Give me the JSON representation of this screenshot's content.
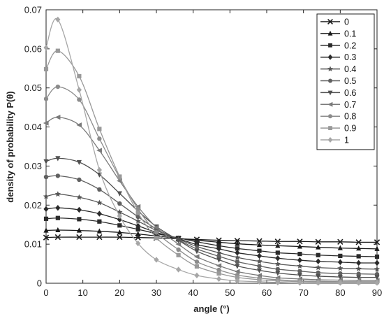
{
  "chart_data": {
    "type": "line",
    "xlabel": "angle (°)",
    "ylabel": "density of probability P(θ)",
    "xlim": [
      0,
      90
    ],
    "ylim": [
      0,
      0.07
    ],
    "xticks": [
      "0",
      "10",
      "20",
      "30",
      "40",
      "50",
      "60",
      "70",
      "80",
      "90"
    ],
    "yticks": [
      "0",
      "0.01",
      "0.02",
      "0.03",
      "0.04",
      "0.05",
      "0.06",
      "0.07"
    ],
    "grid": false,
    "legend_position": "top-right",
    "x": [
      0,
      3.2,
      9,
      14.5,
      20,
      25,
      30,
      36,
      41,
      47,
      52,
      58,
      63,
      69,
      74,
      80,
      85,
      90
    ],
    "series": [
      {
        "name": "0",
        "marker": "x",
        "color": "#1a1a1a",
        "values": [
          0.0117,
          0.0118,
          0.0118,
          0.0118,
          0.0118,
          0.0117,
          0.0116,
          0.0114,
          0.0112,
          0.011,
          0.0109,
          0.0108,
          0.0107,
          0.0107,
          0.0106,
          0.0106,
          0.0105,
          0.0105
        ]
      },
      {
        "name": "0.1",
        "marker": "triangle",
        "color": "#1a1a1a",
        "values": [
          0.0135,
          0.0136,
          0.0135,
          0.0133,
          0.013,
          0.0126,
          0.0121,
          0.0115,
          0.011,
          0.0105,
          0.0101,
          0.0098,
          0.0096,
          0.0094,
          0.0092,
          0.009,
          0.0089,
          0.0088
        ]
      },
      {
        "name": "0.2",
        "marker": "square",
        "color": "#2a2a2a",
        "values": [
          0.0165,
          0.0167,
          0.0164,
          0.0158,
          0.0148,
          0.0138,
          0.0127,
          0.0116,
          0.0106,
          0.0096,
          0.0089,
          0.0083,
          0.0078,
          0.0075,
          0.0072,
          0.007,
          0.0069,
          0.0068
        ]
      },
      {
        "name": "0.3",
        "marker": "diamond",
        "color": "#2a2a2a",
        "values": [
          0.019,
          0.0193,
          0.0188,
          0.0178,
          0.0163,
          0.0147,
          0.013,
          0.0114,
          0.0099,
          0.0088,
          0.0078,
          0.007,
          0.0064,
          0.0059,
          0.0056,
          0.0054,
          0.0052,
          0.0052
        ]
      },
      {
        "name": "0.4",
        "marker": "star",
        "color": "#555555",
        "values": [
          0.0222,
          0.0228,
          0.022,
          0.0206,
          0.0182,
          0.0159,
          0.0135,
          0.0113,
          0.0094,
          0.0078,
          0.0066,
          0.0056,
          0.0049,
          0.0044,
          0.004,
          0.0038,
          0.0037,
          0.0036
        ]
      },
      {
        "name": "0.5",
        "marker": "circle",
        "color": "#606060",
        "values": [
          0.0272,
          0.0275,
          0.0265,
          0.024,
          0.0204,
          0.017,
          0.0139,
          0.0111,
          0.0088,
          0.0069,
          0.0055,
          0.0044,
          0.0036,
          0.0031,
          0.0027,
          0.0025,
          0.0024,
          0.0023
        ]
      },
      {
        "name": "0.6",
        "marker": "triangle-down",
        "color": "#505050",
        "values": [
          0.0312,
          0.032,
          0.031,
          0.0278,
          0.023,
          0.0185,
          0.0145,
          0.011,
          0.0082,
          0.006,
          0.0044,
          0.0033,
          0.0026,
          0.0021,
          0.0018,
          0.0016,
          0.0015,
          0.0015
        ]
      },
      {
        "name": "0.7",
        "marker": "triangle-left",
        "color": "#7a7a7a",
        "values": [
          0.041,
          0.0425,
          0.0405,
          0.034,
          0.0262,
          0.0196,
          0.0143,
          0.01,
          0.0068,
          0.0045,
          0.003,
          0.002,
          0.0014,
          0.0011,
          0.0009,
          0.0008,
          0.0007,
          0.0007
        ]
      },
      {
        "name": "0.8",
        "marker": "circle",
        "color": "#8c8c8c",
        "values": [
          0.0472,
          0.0503,
          0.047,
          0.037,
          0.027,
          0.019,
          0.013,
          0.0086,
          0.0055,
          0.0034,
          0.0021,
          0.0013,
          0.0009,
          0.0006,
          0.0005,
          0.0004,
          0.0004,
          0.0004
        ]
      },
      {
        "name": "0.9",
        "marker": "square",
        "color": "#999999",
        "values": [
          0.0548,
          0.0595,
          0.053,
          0.0395,
          0.0273,
          0.018,
          0.0116,
          0.0072,
          0.0043,
          0.0025,
          0.0015,
          0.0009,
          0.0006,
          0.0004,
          0.0003,
          0.0003,
          0.0003,
          0.0003
        ]
      },
      {
        "name": "1",
        "marker": "diamond",
        "color": "#a6a6a6",
        "values": [
          0.0603,
          0.0675,
          0.0495,
          0.029,
          0.0172,
          0.0102,
          0.006,
          0.0035,
          0.002,
          0.0011,
          0.0006,
          0.0004,
          0.0002,
          0.0001,
          0.0001,
          0.0001,
          0.0001,
          0.0001
        ]
      }
    ]
  }
}
